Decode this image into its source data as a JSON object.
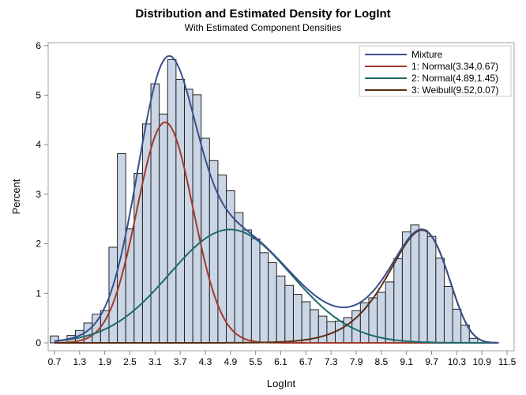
{
  "chart_data": {
    "type": "bar",
    "title": "Distribution and Estimated Density for LogInt",
    "subtitle": "With Estimated Component Densities",
    "xlabel": "LogInt",
    "ylabel": "Percent",
    "xlim": [
      0.5,
      11.7
    ],
    "ylim": [
      0,
      6
    ],
    "grid": false,
    "legend_position": "top-right",
    "x_ticks": [
      "0.7",
      "1.3",
      "1.9",
      "2.5",
      "3.1",
      "3.7",
      "4.3",
      "4.9",
      "5.5",
      "6.1",
      "6.7",
      "7.3",
      "7.9",
      "8.5",
      "9.1",
      "9.7",
      "10.3",
      "10.9",
      "11.5"
    ],
    "y_ticks": [
      "0",
      "1",
      "2",
      "3",
      "4",
      "5",
      "6"
    ],
    "bin_width": 0.2,
    "bin_midpoints": [
      0.7,
      0.9,
      1.1,
      1.3,
      1.5,
      1.7,
      1.9,
      2.1,
      2.3,
      2.5,
      2.7,
      2.9,
      3.1,
      3.3,
      3.5,
      3.7,
      3.9,
      4.1,
      4.3,
      4.5,
      4.7,
      4.9,
      5.1,
      5.3,
      5.5,
      5.7,
      5.9,
      6.1,
      6.3,
      6.5,
      6.7,
      6.9,
      7.1,
      7.3,
      7.5,
      7.7,
      7.9,
      8.1,
      8.3,
      8.5,
      8.7,
      8.9,
      9.1,
      9.3,
      9.5,
      9.7,
      9.9,
      10.1,
      10.3,
      10.5,
      10.7,
      10.9
    ],
    "values": [
      0.14,
      0.0,
      0.15,
      0.25,
      0.4,
      0.58,
      0.65,
      1.93,
      3.82,
      2.3,
      3.42,
      4.42,
      5.23,
      4.62,
      5.72,
      5.32,
      5.12,
      5.01,
      4.13,
      3.68,
      3.39,
      3.07,
      2.63,
      2.28,
      2.1,
      1.82,
      1.62,
      1.35,
      1.16,
      0.98,
      0.83,
      0.67,
      0.54,
      0.43,
      0.44,
      0.51,
      0.65,
      0.81,
      0.91,
      1.02,
      1.23,
      1.7,
      2.24,
      2.38,
      2.27,
      2.15,
      1.71,
      1.14,
      0.68,
      0.36,
      0.09,
      0.01
    ],
    "bar_color": "#cad6e6",
    "curves": [
      {
        "name": "Mixture",
        "color": "#3a4f8c"
      },
      {
        "name": "1: Normal(3.34,0.67)",
        "color": "#a23a2e",
        "dist": "normal",
        "params": [
          3.34,
          0.67
        ]
      },
      {
        "name": "2: Normal(4.89,1.45)",
        "color": "#1b6b6b",
        "dist": "normal",
        "params": [
          4.89,
          1.45
        ]
      },
      {
        "name": "3: Weibull(9.52,0.07)",
        "color": "#5a2e12",
        "dist": "weibull",
        "params": [
          9.52,
          0.07
        ]
      }
    ]
  }
}
